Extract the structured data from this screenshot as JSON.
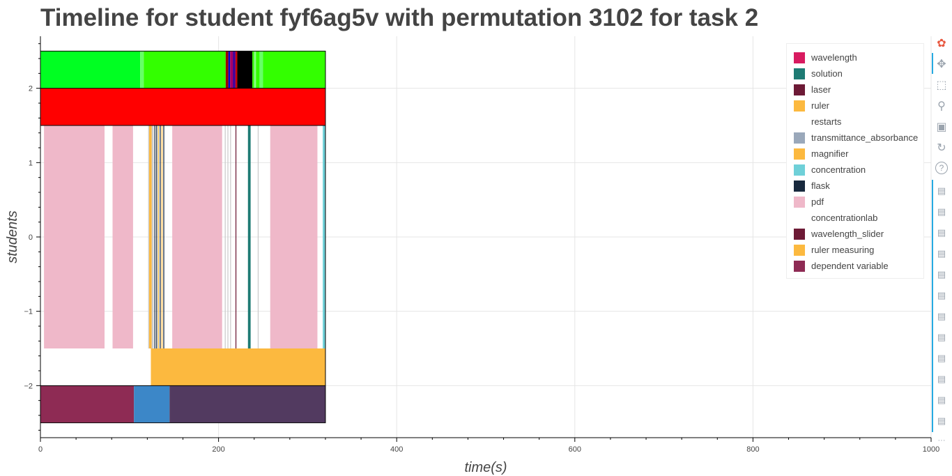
{
  "title": "Timeline for student fyf6ag5v with permutation 3102 for task 2",
  "chart_data": {
    "type": "timeline",
    "xlabel": "time(s)",
    "ylabel": "students",
    "xlim": [
      0,
      1000
    ],
    "ylim": [
      -2.7,
      2.7
    ],
    "x_ticks": [
      0,
      200,
      400,
      600,
      800,
      1000
    ],
    "y_ticks": [
      -2,
      -1,
      0,
      1,
      2
    ],
    "y_tick_labels": [
      "−2",
      "−1",
      "0",
      "1",
      "2"
    ],
    "grid": true,
    "legend_position": "top-right",
    "legend": [
      {
        "label": "wavelength",
        "color": "#d81b60"
      },
      {
        "label": "solution",
        "color": "#1e7b74"
      },
      {
        "label": "laser",
        "color": "#6d1a36"
      },
      {
        "label": "ruler",
        "color": "#fcb93f"
      },
      {
        "label": "restarts",
        "color": "#ffffff"
      },
      {
        "label": "transmittance_absorbance",
        "color": "#9aa8ba"
      },
      {
        "label": "magnifier",
        "color": "#fcb93f"
      },
      {
        "label": "concentration",
        "color": "#6fd0d8"
      },
      {
        "label": "flask",
        "color": "#18293d"
      },
      {
        "label": "pdf",
        "color": "#efb8c9"
      },
      {
        "label": "concentrationlab",
        "color": "#ffffff"
      },
      {
        "label": "wavelength_slider",
        "color": "#6d1a36"
      },
      {
        "label": "ruler measuring",
        "color": "#fcb93f"
      },
      {
        "label": "dependent variable",
        "color": "#8e2b54"
      }
    ],
    "rows": [
      {
        "name": "top-green",
        "y_range": [
          2.0,
          2.5
        ],
        "segments": [
          {
            "start": 0,
            "end": 112,
            "color": "#00ff22"
          },
          {
            "start": 112,
            "end": 116,
            "color": "#66ff66"
          },
          {
            "start": 116,
            "end": 208,
            "color": "#33ff00"
          },
          {
            "start": 208,
            "end": 211,
            "color": "#990000"
          },
          {
            "start": 211,
            "end": 213,
            "color": "#0000cc"
          },
          {
            "start": 213,
            "end": 216,
            "color": "#aa0066"
          },
          {
            "start": 216,
            "end": 219,
            "color": "#440099"
          },
          {
            "start": 219,
            "end": 221,
            "color": "#cc0000"
          },
          {
            "start": 221,
            "end": 238,
            "color": "#000000"
          },
          {
            "start": 238,
            "end": 240,
            "color": "#33ff00"
          },
          {
            "start": 240,
            "end": 242,
            "color": "#88ff88"
          },
          {
            "start": 242,
            "end": 246,
            "color": "#33ff00"
          },
          {
            "start": 246,
            "end": 250,
            "color": "#66ff66"
          },
          {
            "start": 250,
            "end": 320,
            "color": "#33ff00"
          }
        ]
      },
      {
        "name": "red",
        "y_range": [
          1.5,
          2.0
        ],
        "segments": [
          {
            "start": 0,
            "end": 320,
            "color": "#ff0000"
          }
        ]
      },
      {
        "name": "actions",
        "y_range": [
          -1.5,
          1.5
        ],
        "segments": [
          {
            "start": 4,
            "end": 72,
            "color": "#efb8c9"
          },
          {
            "start": 81,
            "end": 104,
            "color": "#efb8c9"
          },
          {
            "start": 121,
            "end": 122,
            "color": "#cccccc"
          },
          {
            "start": 122,
            "end": 125,
            "color": "#fcb93f"
          },
          {
            "start": 125,
            "end": 127,
            "color": "#cccccc"
          },
          {
            "start": 128,
            "end": 129,
            "color": "#18293d"
          },
          {
            "start": 130,
            "end": 131,
            "color": "#18293d"
          },
          {
            "start": 132,
            "end": 133,
            "color": "#fcb93f"
          },
          {
            "start": 134,
            "end": 135,
            "color": "#18293d"
          },
          {
            "start": 136,
            "end": 137,
            "color": "#fcb93f"
          },
          {
            "start": 138,
            "end": 139,
            "color": "#18293d"
          },
          {
            "start": 148,
            "end": 204,
            "color": "#efb8c9"
          },
          {
            "start": 207,
            "end": 208,
            "color": "#cccccc"
          },
          {
            "start": 210,
            "end": 211,
            "color": "#cccccc"
          },
          {
            "start": 213,
            "end": 214,
            "color": "#cccccc"
          },
          {
            "start": 219,
            "end": 220,
            "color": "#6d1a36"
          },
          {
            "start": 233,
            "end": 236,
            "color": "#1e7b74"
          },
          {
            "start": 244,
            "end": 245,
            "color": "#cccccc"
          },
          {
            "start": 258,
            "end": 311,
            "color": "#efb8c9"
          },
          {
            "start": 317,
            "end": 320,
            "color": "#6fd0d8"
          }
        ]
      },
      {
        "name": "ruler-row",
        "y_range": [
          -2.0,
          -1.5
        ],
        "segments": [
          {
            "start": 124,
            "end": 320,
            "color": "#fcb93f"
          }
        ]
      },
      {
        "name": "bottom",
        "y_range": [
          -2.5,
          -2.0
        ],
        "segments": [
          {
            "start": 0,
            "end": 105,
            "color": "#8e2b54"
          },
          {
            "start": 105,
            "end": 145,
            "color": "#3c87c8"
          },
          {
            "start": 145,
            "end": 320,
            "color": "#523a60"
          }
        ]
      }
    ]
  },
  "toolbar": {
    "tools": [
      "bokeh-logo-icon",
      "pan-icon",
      "box-zoom-icon",
      "wheel-zoom-icon",
      "save-icon",
      "reset-icon",
      "help-icon"
    ],
    "hover_tool_count": 12,
    "more_label": "···"
  }
}
